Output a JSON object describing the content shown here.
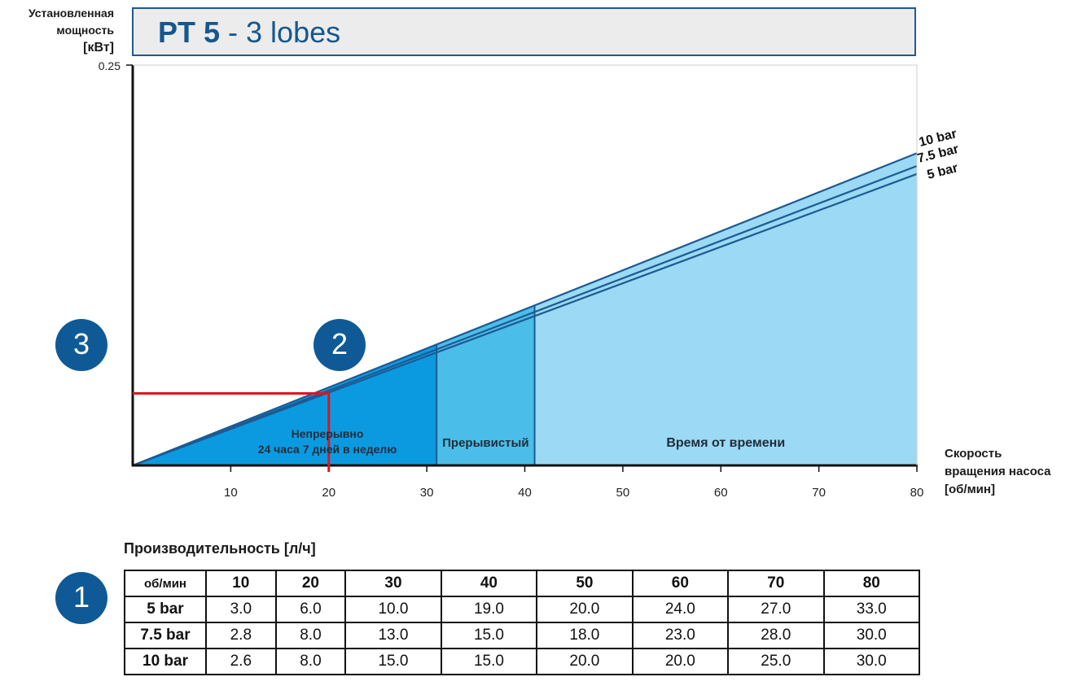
{
  "title": {
    "bold": "PT 5",
    "rest": " - 3 lobes"
  },
  "y_axis": {
    "line1": "Установленная",
    "line2": "мощность",
    "unit": "[кВт]"
  },
  "x_axis": {
    "line1": "Скорость",
    "line2": "вращения насоса",
    "unit": "[об/мин]"
  },
  "markers": [
    "1",
    "2",
    "3"
  ],
  "zones": {
    "continuous_line1": "Непрерывно",
    "continuous_line2": "24 часа 7 дней в неделю",
    "intermittent": "Прерывистый",
    "occasional": "Время от времени"
  },
  "colors": {
    "title_blue": "#16578f",
    "line_blue": "#1d5a92",
    "zone_continuous": "#0b9ae0",
    "zone_intermittent": "#4bbde9",
    "zone_occasional": "#9bd9f4",
    "reference_red": "#e0141e"
  },
  "chart_data": {
    "type": "area",
    "xlim": [
      0,
      80
    ],
    "ylim": [
      0,
      0.25
    ],
    "y_ticks": [
      {
        "value": 0.25,
        "label": "0.25"
      }
    ],
    "x_ticks": [
      {
        "value": 10,
        "label": "10"
      },
      {
        "value": 20,
        "label": "20"
      },
      {
        "value": 30,
        "label": "30"
      },
      {
        "value": 40,
        "label": "40"
      },
      {
        "value": 50,
        "label": "50"
      },
      {
        "value": 60,
        "label": "60"
      },
      {
        "value": 70,
        "label": "70"
      },
      {
        "value": 80,
        "label": "80"
      }
    ],
    "series": [
      {
        "name": "10 bar",
        "x": [
          0,
          80
        ],
        "y": [
          0,
          0.195
        ]
      },
      {
        "name": "7.5 bar",
        "x": [
          0,
          80
        ],
        "y": [
          0,
          0.187
        ]
      },
      {
        "name": "5 bar",
        "x": [
          0,
          80
        ],
        "y": [
          0,
          0.182
        ]
      }
    ],
    "zone_bounds": {
      "continuous_max": 31,
      "intermittent_max": 41
    },
    "reference": {
      "x": 20,
      "y": 0.045
    }
  },
  "table": {
    "title": "Производительность [л/ч]",
    "corner": "об/мин",
    "columns": [
      "10",
      "20",
      "30",
      "40",
      "50",
      "60",
      "70",
      "80"
    ],
    "rows": [
      {
        "label": "5 bar",
        "values": [
          "3.0",
          "6.0",
          "10.0",
          "19.0",
          "20.0",
          "24.0",
          "27.0",
          "33.0"
        ]
      },
      {
        "label": "7.5 bar",
        "values": [
          "2.8",
          "8.0",
          "13.0",
          "15.0",
          "18.0",
          "23.0",
          "28.0",
          "30.0"
        ]
      },
      {
        "label": "10 bar",
        "values": [
          "2.6",
          "8.0",
          "15.0",
          "15.0",
          "20.0",
          "20.0",
          "25.0",
          "30.0"
        ]
      }
    ]
  }
}
